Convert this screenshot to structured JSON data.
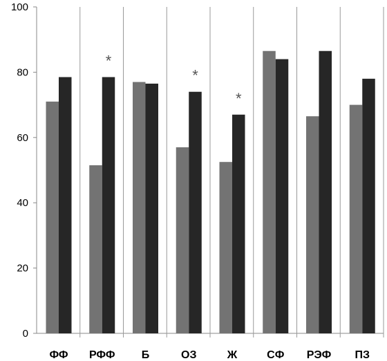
{
  "chart_data": {
    "type": "bar",
    "categories": [
      "ФФ",
      "РФФ",
      "Б",
      "ОЗ",
      "Ж",
      "СФ",
      "РЭФ",
      "ПЗ"
    ],
    "series": [
      {
        "values": [
          71,
          51.5,
          77,
          57,
          52.5,
          86.5,
          66.5,
          70
        ],
        "color": "#737373"
      },
      {
        "values": [
          78.5,
          78.5,
          76.5,
          74,
          67,
          84,
          86.5,
          78
        ],
        "color": "#262626"
      }
    ],
    "annotations": [
      {
        "category": "РФФ",
        "text": "*"
      },
      {
        "category": "ОЗ",
        "text": "*"
      },
      {
        "category": "Ж",
        "text": "*"
      }
    ],
    "yticks": [
      "0",
      "20",
      "40",
      "60",
      "80",
      "100"
    ],
    "ylim": [
      0,
      100
    ],
    "grid": false,
    "category_separators": true,
    "title": "",
    "xlabel": "",
    "ylabel": ""
  }
}
